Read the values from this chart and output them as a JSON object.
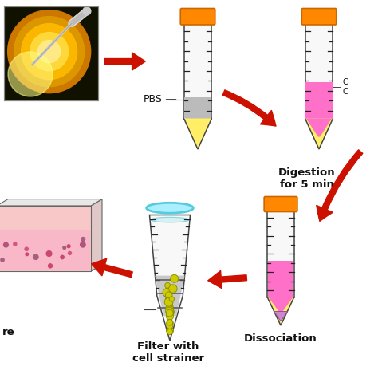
{
  "bg_color": "#ffffff",
  "arrow_color": "#cc1100",
  "tube_body_color": "#f8f8f8",
  "tube_outline_color": "#444444",
  "tube_cap_color": "#ff8800",
  "tube_cap_outline": "#cc6600",
  "pink_liquid_color": "#ff70c8",
  "pink_liquid_light": "#ffaadd",
  "gray_liquid_color": "#bbbbbb",
  "yellow_tip_color": "#ffffaa",
  "yellow_tip_color2": "#ffee66",
  "cyan_ring_color": "#55ccdd",
  "cyan_ring_fill": "#aaeeff",
  "cell_dot_color": "#cccc00",
  "cell_outline_color": "#888800",
  "pellet_color_dissociation": "#cc88cc",
  "flask_pink": "#f8c8c8",
  "flask_outline": "#666666",
  "tick_color": "#222222",
  "label_pbs": "PBS",
  "label_digestion": "Digestion\nfor 5 min",
  "label_filter": "Filter with\ncell strainer",
  "label_dissociation": "Dissociation",
  "label_culture_partial": "re",
  "text_color": "#111111",
  "eye_bg": "#cc8800",
  "eye_inner1": "#ffcc33",
  "eye_inner2": "#ffaa00",
  "eye_inner3": "#eecc66",
  "syringe_color": "#d8d8d8",
  "syringe_outline": "#aaaaaa"
}
